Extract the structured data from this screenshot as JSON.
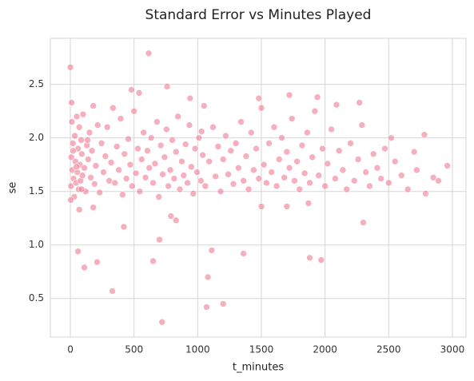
{
  "chart_data": {
    "type": "scatter",
    "title": "Standard Error vs Minutes Played",
    "x_label": "t_minutes",
    "y_label": "se",
    "color": "#f07a92",
    "grid": true,
    "xlim": [
      -157,
      3107
    ],
    "ylim": [
      0.14,
      2.93
    ],
    "xticks": [
      0,
      500,
      1000,
      1500,
      2000,
      2500,
      3000
    ],
    "yticks": [
      0.5,
      {
        "value": 1,
        "label": "1.0"
      },
      1.5,
      {
        "value": 2,
        "label": "2.0"
      },
      2.5
    ],
    "x": [
      5,
      8,
      12,
      15,
      20,
      25,
      30,
      35,
      40,
      45,
      50,
      55,
      60,
      65,
      70,
      75,
      80,
      85,
      90,
      95,
      100,
      110,
      120,
      130,
      140,
      150,
      160,
      170,
      180,
      190,
      200,
      215,
      230,
      245,
      260,
      275,
      290,
      305,
      320,
      335,
      350,
      365,
      380,
      395,
      410,
      425,
      440,
      455,
      470,
      485,
      500,
      515,
      530,
      545,
      560,
      575,
      590,
      605,
      620,
      635,
      650,
      665,
      680,
      695,
      710,
      725,
      740,
      755,
      770,
      785,
      800,
      815,
      830,
      845,
      860,
      875,
      890,
      905,
      920,
      935,
      950,
      965,
      980,
      995,
      1010,
      1025,
      1040,
      1060,
      1090,
      1120,
      1140,
      1160,
      1180,
      1200,
      1220,
      1240,
      1260,
      1280,
      1300,
      1320,
      1340,
      1360,
      1380,
      1400,
      1420,
      1440,
      1460,
      1480,
      1500,
      1520,
      1540,
      1560,
      1580,
      1600,
      1620,
      1640,
      1660,
      1680,
      1700,
      1720,
      1740,
      1760,
      1780,
      1800,
      1820,
      1840,
      1860,
      1880,
      1900,
      1920,
      1950,
      1980,
      2000,
      2020,
      2050,
      2080,
      2110,
      2140,
      2170,
      2200,
      2230,
      2260,
      2290,
      2320,
      2350,
      2380,
      2410,
      2440,
      2470,
      2500,
      2550,
      2600,
      2650,
      2720,
      2850,
      3,
      22,
      48,
      88,
      135,
      0,
      615,
      10,
      480,
      760,
      540,
      1480,
      1720,
      1940,
      60,
      110,
      210,
      330,
      420,
      650,
      700,
      720,
      790,
      1070,
      1080,
      1110,
      1200,
      1360,
      1880,
      1970,
      2300,
      2790,
      2960,
      2890,
      2780,
      2700,
      2520,
      2270,
      2090,
      1050,
      1030,
      940,
      70,
      180,
      830,
      1870,
      1500,
      1700
    ],
    "values": [
      1.55,
      1.82,
      2.15,
      1.7,
      1.95,
      1.62,
      1.45,
      2.02,
      1.78,
      1.58,
      2.2,
      1.68,
      1.9,
      1.52,
      2.1,
      1.75,
      1.6,
      1.98,
      1.85,
      1.65,
      2.22,
      1.72,
      1.5,
      1.93,
      1.8,
      2.05,
      1.63,
      1.88,
      2.3,
      1.57,
      1.74,
      2.12,
      1.49,
      1.95,
      1.68,
      1.83,
      2.1,
      1.6,
      1.77,
      2.28,
      1.58,
      1.92,
      1.7,
      2.18,
      1.47,
      1.85,
      1.62,
      1.99,
      1.75,
      1.55,
      2.25,
      1.67,
      1.9,
      1.5,
      1.8,
      2.05,
      1.63,
      1.88,
      1.72,
      2.0,
      1.58,
      1.76,
      2.15,
      1.45,
      1.93,
      1.66,
      1.82,
      2.08,
      1.55,
      1.7,
      1.98,
      1.62,
      1.87,
      2.2,
      1.52,
      1.78,
      1.65,
      1.94,
      1.58,
      2.12,
      1.73,
      1.48,
      1.9,
      1.68,
      2.0,
      1.6,
      1.84,
      1.55,
      1.78,
      2.1,
      1.64,
      1.92,
      1.5,
      1.8,
      2.02,
      1.66,
      1.88,
      1.57,
      1.95,
      1.72,
      2.15,
      1.6,
      1.83,
      1.52,
      2.05,
      1.7,
      1.9,
      1.62,
      2.28,
      1.75,
      1.58,
      1.95,
      1.68,
      2.1,
      1.55,
      1.8,
      2.0,
      1.63,
      1.87,
      1.72,
      2.18,
      1.6,
      1.78,
      1.52,
      1.93,
      1.67,
      2.05,
      1.58,
      1.82,
      2.25,
      1.65,
      1.9,
      1.55,
      1.76,
      2.08,
      1.62,
      1.88,
      1.7,
      1.52,
      1.95,
      1.6,
      1.8,
      2.12,
      1.68,
      1.55,
      1.85,
      1.72,
      1.62,
      1.9,
      1.58,
      1.78,
      1.65,
      1.52,
      1.7,
      1.63,
      1.42,
      1.88,
      1.73,
      1.52,
      1.98,
      2.66,
      2.79,
      2.33,
      2.45,
      2.48,
      2.42,
      2.37,
      2.4,
      2.38,
      0.94,
      0.79,
      0.84,
      0.57,
      1.17,
      0.85,
      1.05,
      0.28,
      1.27,
      0.42,
      0.7,
      0.95,
      0.45,
      0.92,
      0.88,
      0.86,
      1.21,
      1.48,
      1.74,
      1.6,
      2.03,
      1.87,
      2.0,
      2.33,
      2.31,
      2.3,
      2.06,
      2.37,
      1.33,
      1.35,
      1.23,
      1.39,
      1.36,
      1.36
    ]
  }
}
